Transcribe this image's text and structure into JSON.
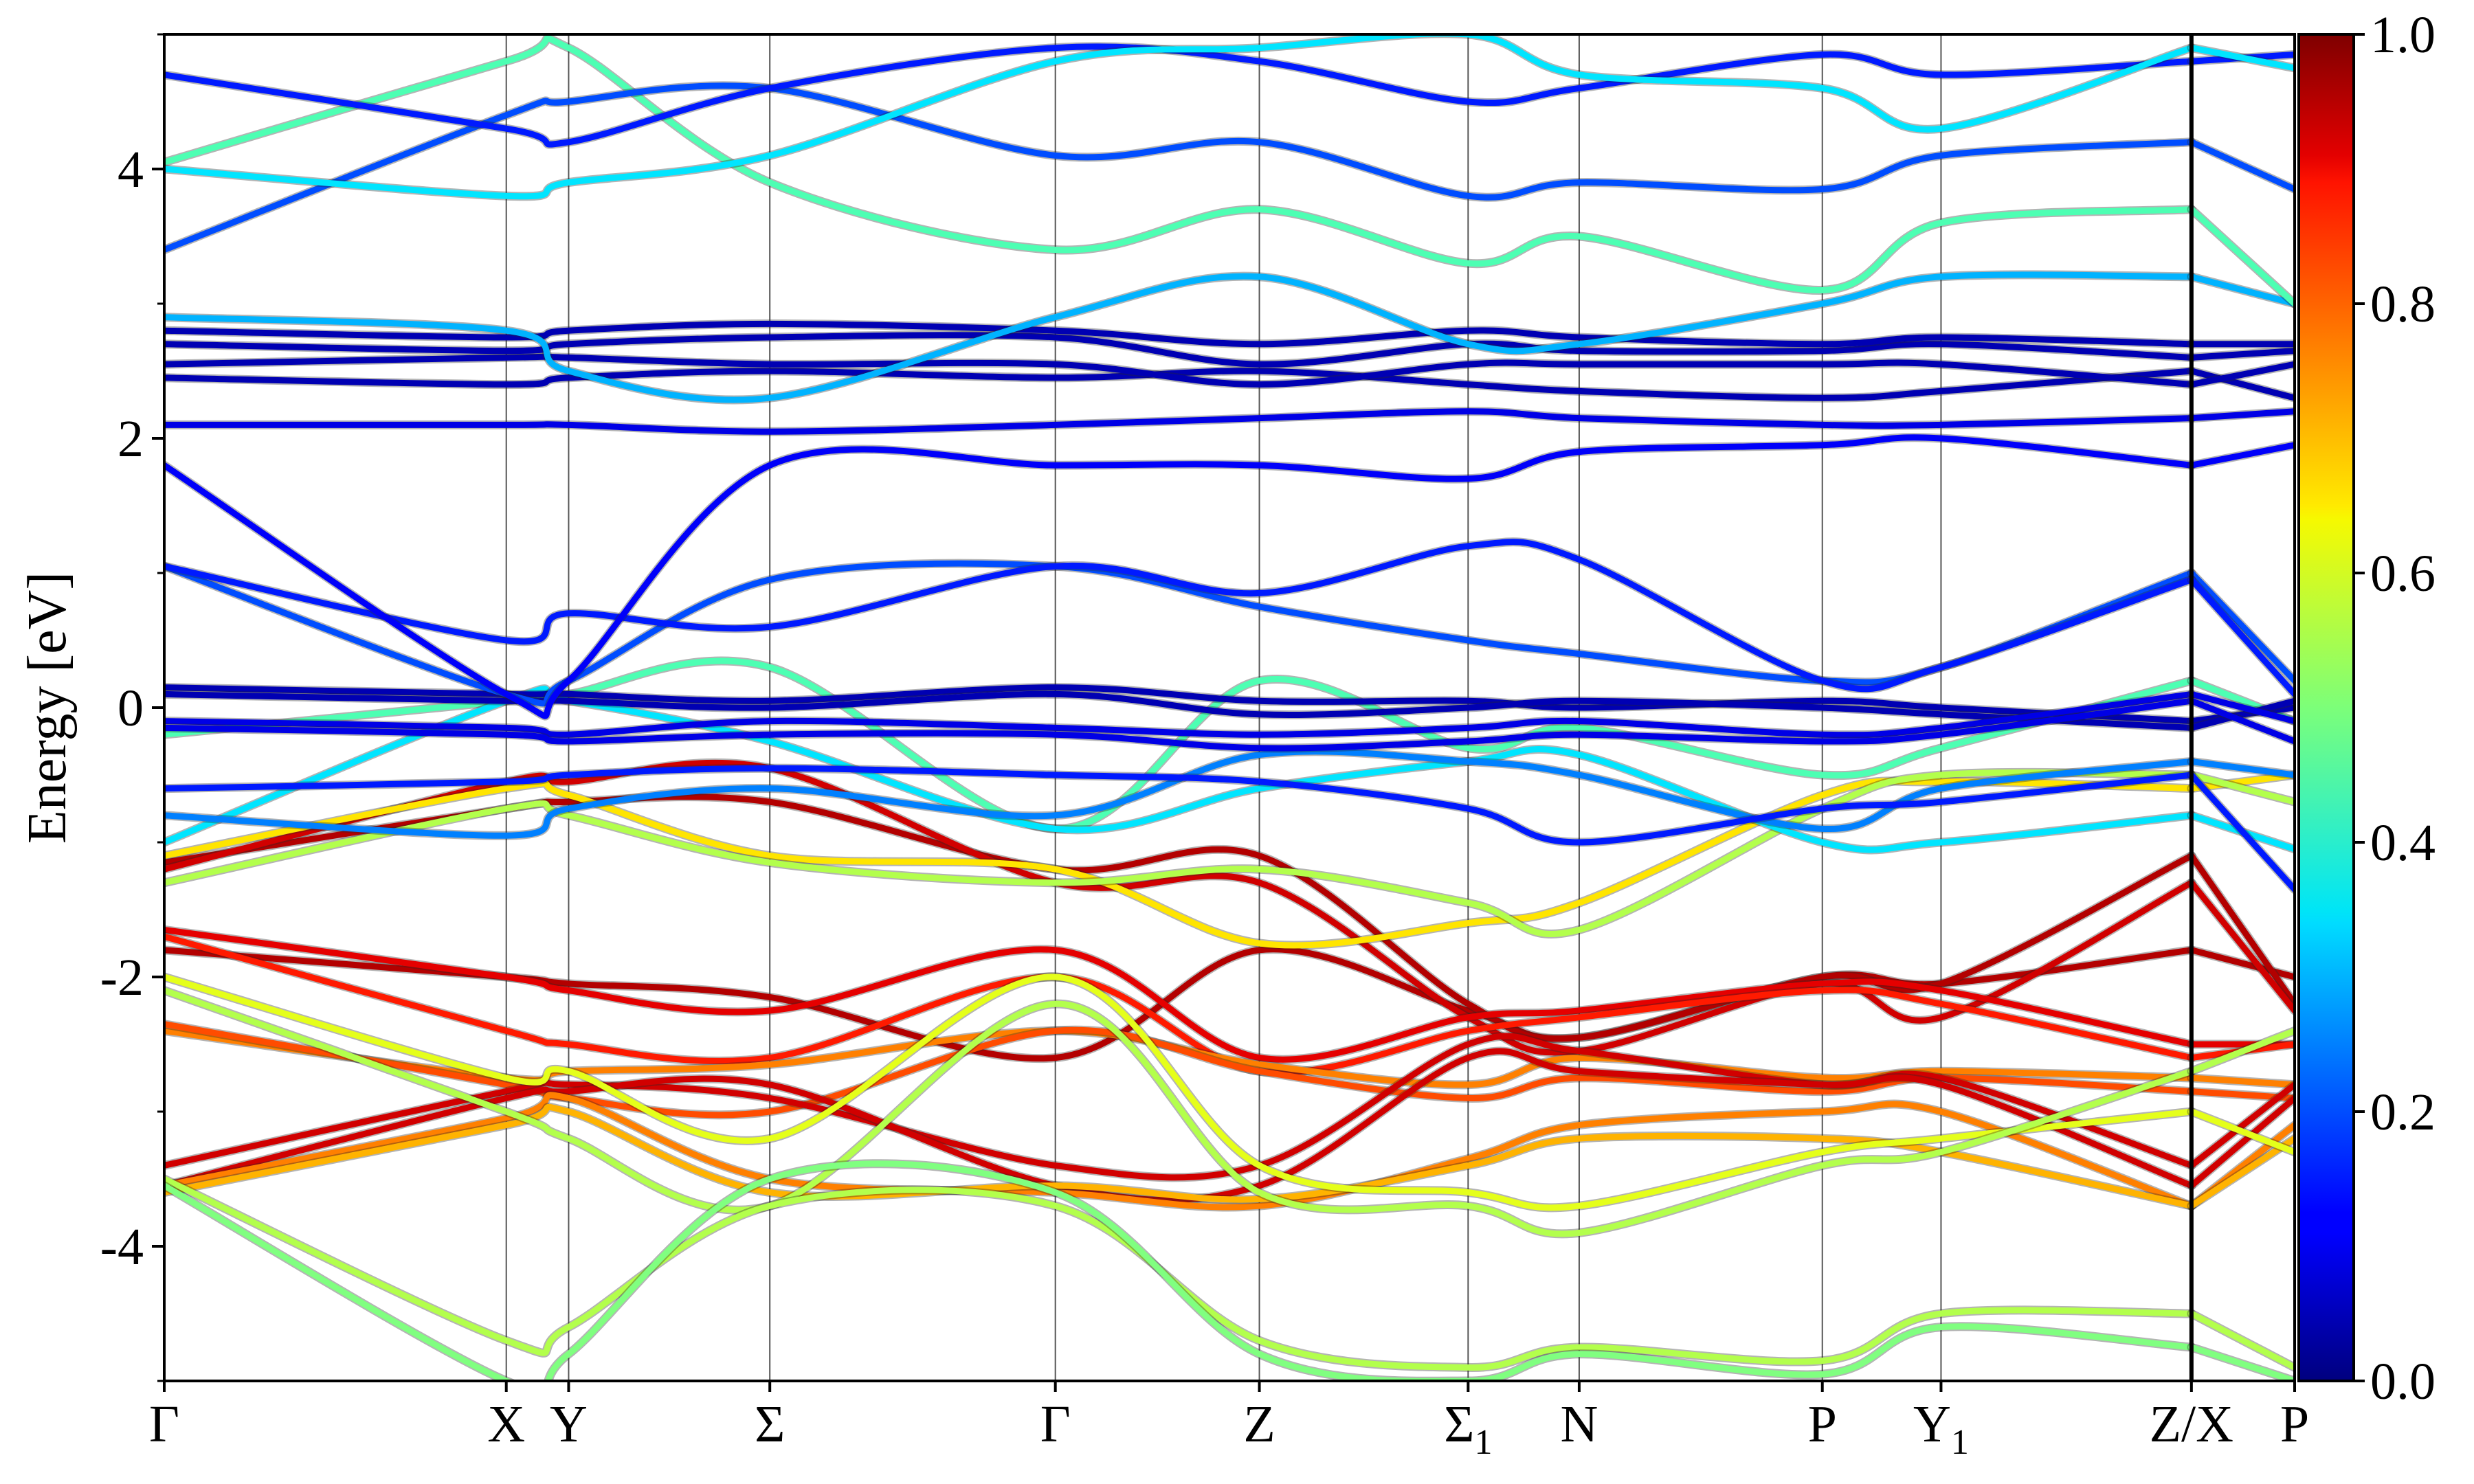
{
  "chart_data": {
    "type": "line",
    "ylabel": "Energy [eV]",
    "ylim": [
      -5,
      5
    ],
    "yticks": [
      -4,
      -2,
      0,
      2,
      4
    ],
    "yticks_minor": [
      -5,
      -3,
      -1,
      1,
      3,
      5
    ],
    "ytick_labels": [
      "-4",
      "-2",
      "0",
      "2",
      "4"
    ],
    "x_segments": [
      {
        "labels": [
          "Γ",
          "X",
          "Y",
          "Σ",
          "Γ",
          "Z",
          "Σ1",
          "N",
          "P",
          "Y1",
          "Z"
        ],
        "positions": [
          0.0,
          0.6527,
          0.7717,
          1.1556,
          1.7005,
          2.0898,
          2.4882,
          2.7001,
          3.1641,
          3.3906,
          3.8685
        ]
      },
      {
        "labels": [
          "X",
          "P"
        ],
        "positions": [
          3.8685,
          4.0654
        ]
      }
    ],
    "xlim": [
      0.0,
      4.0654
    ],
    "kpoint_labels": [
      {
        "main": "Γ",
        "sub": ""
      },
      {
        "main": "X",
        "sub": ""
      },
      {
        "main": "Y",
        "sub": ""
      },
      {
        "main": "Σ",
        "sub": ""
      },
      {
        "main": "Γ",
        "sub": ""
      },
      {
        "main": "Z",
        "sub": ""
      },
      {
        "main": "Σ",
        "sub": "1"
      },
      {
        "main": "N",
        "sub": ""
      },
      {
        "main": "P",
        "sub": ""
      },
      {
        "main": "Y",
        "sub": "1"
      },
      {
        "main": "Z/X",
        "sub": ""
      },
      {
        "main": "P",
        "sub": ""
      }
    ],
    "kpoint_positions": [
      0.0,
      0.6527,
      0.7717,
      1.1556,
      1.7005,
      2.0898,
      2.4882,
      2.7001,
      3.1641,
      3.3906,
      3.8685,
      4.0654
    ],
    "colorbar": {
      "colormap": "jet",
      "range": [
        0.0,
        1.0
      ],
      "ticks": [
        0.0,
        0.2,
        0.4,
        0.6,
        0.8,
        1.0
      ],
      "tick_labels": [
        "0.0",
        "0.2",
        "0.4",
        "0.6",
        "0.8",
        "1.0"
      ]
    },
    "bands": [
      {
        "e": [
          -1.8,
          -2.0,
          -2.05,
          -2.15,
          -2.6,
          -1.8,
          -2.25,
          -2.45,
          -2.0,
          -2.05,
          -1.8,
          -2.0
        ],
        "w": 0.95
      },
      {
        "e": [
          -1.15,
          -0.75,
          -0.7,
          -0.7,
          -1.2,
          -1.1,
          -2.2,
          -2.45,
          -2.0,
          -2.05,
          -1.1,
          -2.2
        ],
        "w": 0.95
      },
      {
        "e": [
          -1.2,
          -0.55,
          -0.55,
          -0.45,
          -1.3,
          -1.3,
          -2.3,
          -2.55,
          -2.05,
          -2.3,
          -1.3,
          -2.25
        ],
        "w": 0.92
      },
      {
        "e": [
          -1.65,
          -2.0,
          -2.1,
          -2.25,
          -1.8,
          -2.6,
          -2.3,
          -2.25,
          -2.05,
          -2.1,
          -2.5,
          -2.5
        ],
        "w": 0.9
      },
      {
        "e": [
          -1.7,
          -2.4,
          -2.5,
          -2.6,
          -2.0,
          -2.7,
          -2.4,
          -2.3,
          -2.1,
          -2.2,
          -2.6,
          -2.5
        ],
        "w": 0.85
      },
      {
        "e": [
          -2.4,
          -2.75,
          -2.7,
          -2.65,
          -2.4,
          -2.65,
          -2.8,
          -2.6,
          -2.75,
          -2.7,
          -2.75,
          -2.8
        ],
        "w": 0.75
      },
      {
        "e": [
          -2.35,
          -2.8,
          -2.9,
          -3.0,
          -2.4,
          -2.7,
          -2.9,
          -2.75,
          -2.85,
          -2.75,
          -2.85,
          -2.9
        ],
        "w": 0.8
      },
      {
        "e": [
          -3.4,
          -2.85,
          -2.8,
          -2.9,
          -3.4,
          -3.4,
          -2.5,
          -2.55,
          -2.8,
          -2.75,
          -3.4,
          -2.8
        ],
        "w": 0.92
      },
      {
        "e": [
          -3.55,
          -2.9,
          -2.85,
          -2.8,
          -3.55,
          -3.55,
          -2.6,
          -2.7,
          -2.8,
          -2.8,
          -3.55,
          -2.9
        ],
        "w": 0.92
      },
      {
        "e": [
          -3.55,
          -3.05,
          -2.9,
          -3.5,
          -3.6,
          -3.7,
          -3.35,
          -3.1,
          -3.0,
          -3.0,
          -3.7,
          -3.1
        ],
        "w": 0.75
      },
      {
        "e": [
          -3.6,
          -3.1,
          -3.0,
          -3.6,
          -3.55,
          -3.65,
          -3.4,
          -3.2,
          -3.2,
          -3.3,
          -3.7,
          -3.2
        ],
        "w": 0.7
      },
      {
        "e": [
          -2.0,
          -2.75,
          -2.7,
          -3.2,
          -2.0,
          -3.4,
          -3.6,
          -3.7,
          -3.3,
          -3.2,
          -3.0,
          -3.3
        ],
        "w": 0.6
      },
      {
        "e": [
          -2.1,
          -3.0,
          -3.2,
          -3.7,
          -2.2,
          -3.6,
          -3.7,
          -3.9,
          -3.4,
          -3.3,
          -2.7,
          -2.4
        ],
        "w": 0.55
      },
      {
        "e": [
          -3.5,
          -4.7,
          -4.6,
          -3.7,
          -3.7,
          -4.7,
          -4.9,
          -4.75,
          -4.85,
          -4.5,
          -4.5,
          -4.9
        ],
        "w": 0.55
      },
      {
        "e": [
          -3.55,
          -5.0,
          -4.8,
          -3.5,
          -3.6,
          -4.8,
          -5.0,
          -4.8,
          -4.95,
          -4.6,
          -4.75,
          -5.0
        ],
        "w": 0.5
      },
      {
        "e": [
          -1.1,
          -0.6,
          -0.65,
          -1.1,
          -1.2,
          -1.75,
          -1.6,
          -1.45,
          -0.65,
          -0.55,
          -0.6,
          -0.5
        ],
        "w": 0.65
      },
      {
        "e": [
          -1.3,
          -0.75,
          -0.8,
          -1.15,
          -1.3,
          -1.2,
          -1.45,
          -1.65,
          -0.75,
          -0.5,
          -0.5,
          -0.7
        ],
        "w": 0.55
      },
      {
        "e": [
          -0.2,
          0.05,
          0.1,
          0.3,
          -0.9,
          0.2,
          -0.3,
          -0.15,
          -0.5,
          -0.3,
          0.2,
          -0.1
        ],
        "w": 0.45
      },
      {
        "e": [
          -1.0,
          0.05,
          0.05,
          -0.25,
          -0.9,
          -0.6,
          -0.4,
          -0.35,
          -1.0,
          -1.0,
          -0.8,
          -1.05
        ],
        "w": 0.35
      },
      {
        "e": [
          -0.8,
          -0.95,
          -0.75,
          -0.6,
          -0.8,
          -0.35,
          -0.4,
          -0.5,
          -0.9,
          -0.6,
          -0.4,
          -0.5
        ],
        "w": 0.25
      },
      {
        "e": [
          -0.6,
          -0.55,
          -0.5,
          -0.45,
          -0.5,
          -0.55,
          -0.75,
          -1.0,
          -0.75,
          -0.7,
          -0.5,
          -1.35
        ],
        "w": 0.15
      },
      {
        "e": [
          0.15,
          0.1,
          0.1,
          0.05,
          0.15,
          0.05,
          0.05,
          0.0,
          0.05,
          0.0,
          -0.1,
          0.0
        ],
        "w": 0.05
      },
      {
        "e": [
          0.1,
          0.05,
          0.05,
          0.0,
          0.1,
          -0.05,
          0.0,
          0.05,
          0.0,
          -0.05,
          -0.15,
          0.05
        ],
        "w": 0.05
      },
      {
        "e": [
          -0.1,
          -0.15,
          -0.2,
          -0.1,
          -0.15,
          -0.2,
          -0.15,
          -0.1,
          -0.2,
          -0.15,
          0.1,
          -0.1
        ],
        "w": 0.1
      },
      {
        "e": [
          -0.15,
          -0.2,
          -0.25,
          -0.2,
          -0.2,
          -0.3,
          -0.25,
          -0.2,
          -0.25,
          -0.2,
          0.05,
          -0.25
        ],
        "w": 0.1
      },
      {
        "e": [
          1.05,
          0.1,
          0.2,
          0.95,
          1.05,
          0.75,
          0.5,
          0.4,
          0.2,
          0.3,
          1.0,
          0.2
        ],
        "w": 0.2
      },
      {
        "e": [
          1.05,
          0.5,
          0.7,
          0.6,
          1.05,
          0.85,
          1.2,
          1.1,
          0.2,
          0.3,
          0.95,
          0.1
        ],
        "w": 0.15
      },
      {
        "e": [
          1.8,
          0.1,
          0.2,
          1.8,
          1.8,
          1.8,
          1.7,
          1.9,
          1.95,
          2.0,
          1.8,
          1.95
        ],
        "w": 0.12
      },
      {
        "e": [
          2.1,
          2.1,
          2.1,
          2.05,
          2.1,
          2.15,
          2.2,
          2.15,
          2.1,
          2.1,
          2.15,
          2.2
        ],
        "w": 0.1
      },
      {
        "e": [
          2.45,
          2.4,
          2.45,
          2.5,
          2.45,
          2.5,
          2.4,
          2.35,
          2.3,
          2.35,
          2.5,
          2.3
        ],
        "w": 0.05
      },
      {
        "e": [
          2.55,
          2.6,
          2.6,
          2.55,
          2.55,
          2.4,
          2.55,
          2.55,
          2.55,
          2.55,
          2.4,
          2.55
        ],
        "w": 0.05
      },
      {
        "e": [
          2.7,
          2.65,
          2.7,
          2.75,
          2.75,
          2.55,
          2.7,
          2.65,
          2.65,
          2.7,
          2.6,
          2.65
        ],
        "w": 0.05
      },
      {
        "e": [
          2.8,
          2.75,
          2.8,
          2.85,
          2.8,
          2.7,
          2.8,
          2.75,
          2.7,
          2.75,
          2.7,
          2.7
        ],
        "w": 0.05
      },
      {
        "e": [
          2.9,
          2.8,
          2.5,
          2.3,
          2.9,
          3.2,
          2.7,
          2.7,
          3.0,
          3.2,
          3.2,
          3.0
        ],
        "w": 0.3
      },
      {
        "e": [
          4.05,
          4.8,
          4.9,
          3.9,
          3.4,
          3.7,
          3.3,
          3.5,
          3.1,
          3.6,
          3.7,
          3.0
        ],
        "w": 0.45
      },
      {
        "e": [
          3.4,
          4.4,
          4.5,
          4.6,
          4.1,
          4.2,
          3.8,
          3.9,
          3.85,
          4.1,
          4.2,
          3.85
        ],
        "w": 0.2
      },
      {
        "e": [
          4.7,
          4.3,
          4.2,
          4.6,
          4.9,
          4.8,
          4.5,
          4.6,
          4.85,
          4.7,
          4.8,
          4.85
        ],
        "w": 0.15
      },
      {
        "e": [
          4.0,
          3.8,
          3.9,
          4.1,
          4.8,
          4.9,
          5.0,
          4.7,
          4.6,
          4.3,
          4.9,
          4.75
        ],
        "w": 0.35
      }
    ]
  }
}
